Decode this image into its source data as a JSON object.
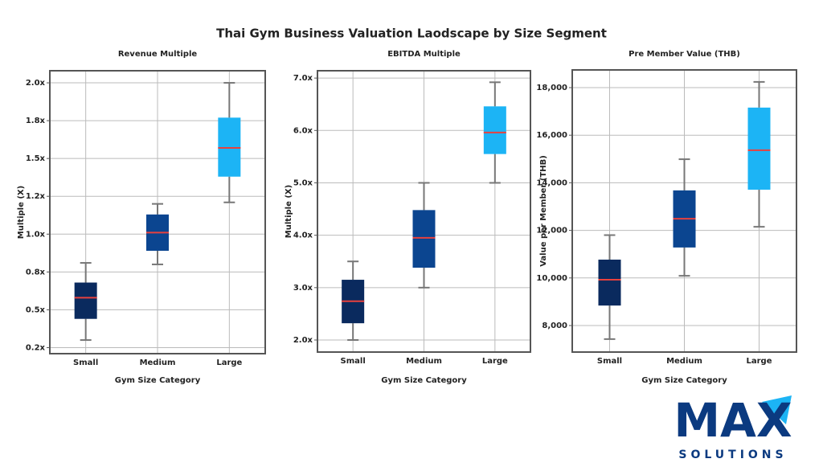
{
  "title": "Thai Gym Business Valuation Laodscape by Size Segment",
  "logo": {
    "text": "MAX",
    "subtext": "SOLUTIONS"
  },
  "chart_data": [
    {
      "type": "box",
      "title": "Revenue Multiple",
      "xlabel": "Gym Size Category",
      "ylabel": "Multiple (X)",
      "categories": [
        "Small",
        "Medium",
        "Large"
      ],
      "colors": [
        "#0a2a5e",
        "#0b4590",
        "#1cb4f5"
      ],
      "median_color": "#e8413e",
      "stats": [
        {
          "min": 0.3,
          "q1": 0.44,
          "median": 0.58,
          "q3": 0.68,
          "max": 0.81
        },
        {
          "min": 0.8,
          "q1": 0.89,
          "median": 1.01,
          "q3": 1.13,
          "max": 1.2
        },
        {
          "min": 1.21,
          "q1": 1.38,
          "median": 1.57,
          "q3": 1.77,
          "max": 2.0
        }
      ],
      "ylim": [
        0.21,
        2.08
      ],
      "yticks": [
        {
          "value": 0.25,
          "label": "0.2x"
        },
        {
          "value": 0.5,
          "label": "0.5x"
        },
        {
          "value": 0.75,
          "label": "0.8x"
        },
        {
          "value": 1.0,
          "label": "1.0x"
        },
        {
          "value": 1.25,
          "label": "1.2x"
        },
        {
          "value": 1.5,
          "label": "1.5x"
        },
        {
          "value": 1.75,
          "label": "1.8x"
        },
        {
          "value": 2.0,
          "label": "2.0x"
        }
      ],
      "grid": true
    },
    {
      "type": "box",
      "title": "EBITDA Multiple",
      "xlabel": "Gym Size Category",
      "ylabel": "Multiple (X)",
      "categories": [
        "Small",
        "Medium",
        "Large"
      ],
      "colors": [
        "#0a2a5e",
        "#0b4590",
        "#1cb4f5"
      ],
      "median_color": "#e8413e",
      "stats": [
        {
          "min": 2.0,
          "q1": 2.32,
          "median": 2.74,
          "q3": 3.15,
          "max": 3.5
        },
        {
          "min": 3.0,
          "q1": 3.38,
          "median": 3.95,
          "q3": 4.48,
          "max": 5.0
        },
        {
          "min": 5.0,
          "q1": 5.55,
          "median": 5.96,
          "q3": 6.46,
          "max": 6.92
        }
      ],
      "ylim": [
        1.77,
        7.14
      ],
      "yticks": [
        {
          "value": 2,
          "label": "2.0x"
        },
        {
          "value": 3,
          "label": "3.0x"
        },
        {
          "value": 4,
          "label": "4.0x"
        },
        {
          "value": 5,
          "label": "5.0x"
        },
        {
          "value": 6,
          "label": "6.0x"
        },
        {
          "value": 7,
          "label": "7.0x"
        }
      ],
      "grid": true
    },
    {
      "type": "box",
      "title": "Pre Member Value (THB)",
      "xlabel": "Gym Size Category",
      "ylabel": "Value per Member (THB)",
      "categories": [
        "Small",
        "Medium",
        "Large"
      ],
      "colors": [
        "#0a2a5e",
        "#0b4590",
        "#1cb4f5"
      ],
      "median_color": "#e8413e",
      "stats": [
        {
          "min": 7430,
          "q1": 8840,
          "median": 9925,
          "q3": 10770,
          "max": 11800
        },
        {
          "min": 10090,
          "q1": 11280,
          "median": 12490,
          "q3": 13680,
          "max": 14990
        },
        {
          "min": 12150,
          "q1": 13710,
          "median": 15370,
          "q3": 17160,
          "max": 18240
        }
      ],
      "ylim": [
        6885,
        18743
      ],
      "yticks": [
        {
          "value": 8000,
          "label": "8,000"
        },
        {
          "value": 10000,
          "label": "10,000"
        },
        {
          "value": 12000,
          "label": "12,000"
        },
        {
          "value": 14000,
          "label": "14,000"
        },
        {
          "value": 16000,
          "label": "16,000"
        },
        {
          "value": 18000,
          "label": "18,000"
        }
      ],
      "grid": true
    }
  ]
}
